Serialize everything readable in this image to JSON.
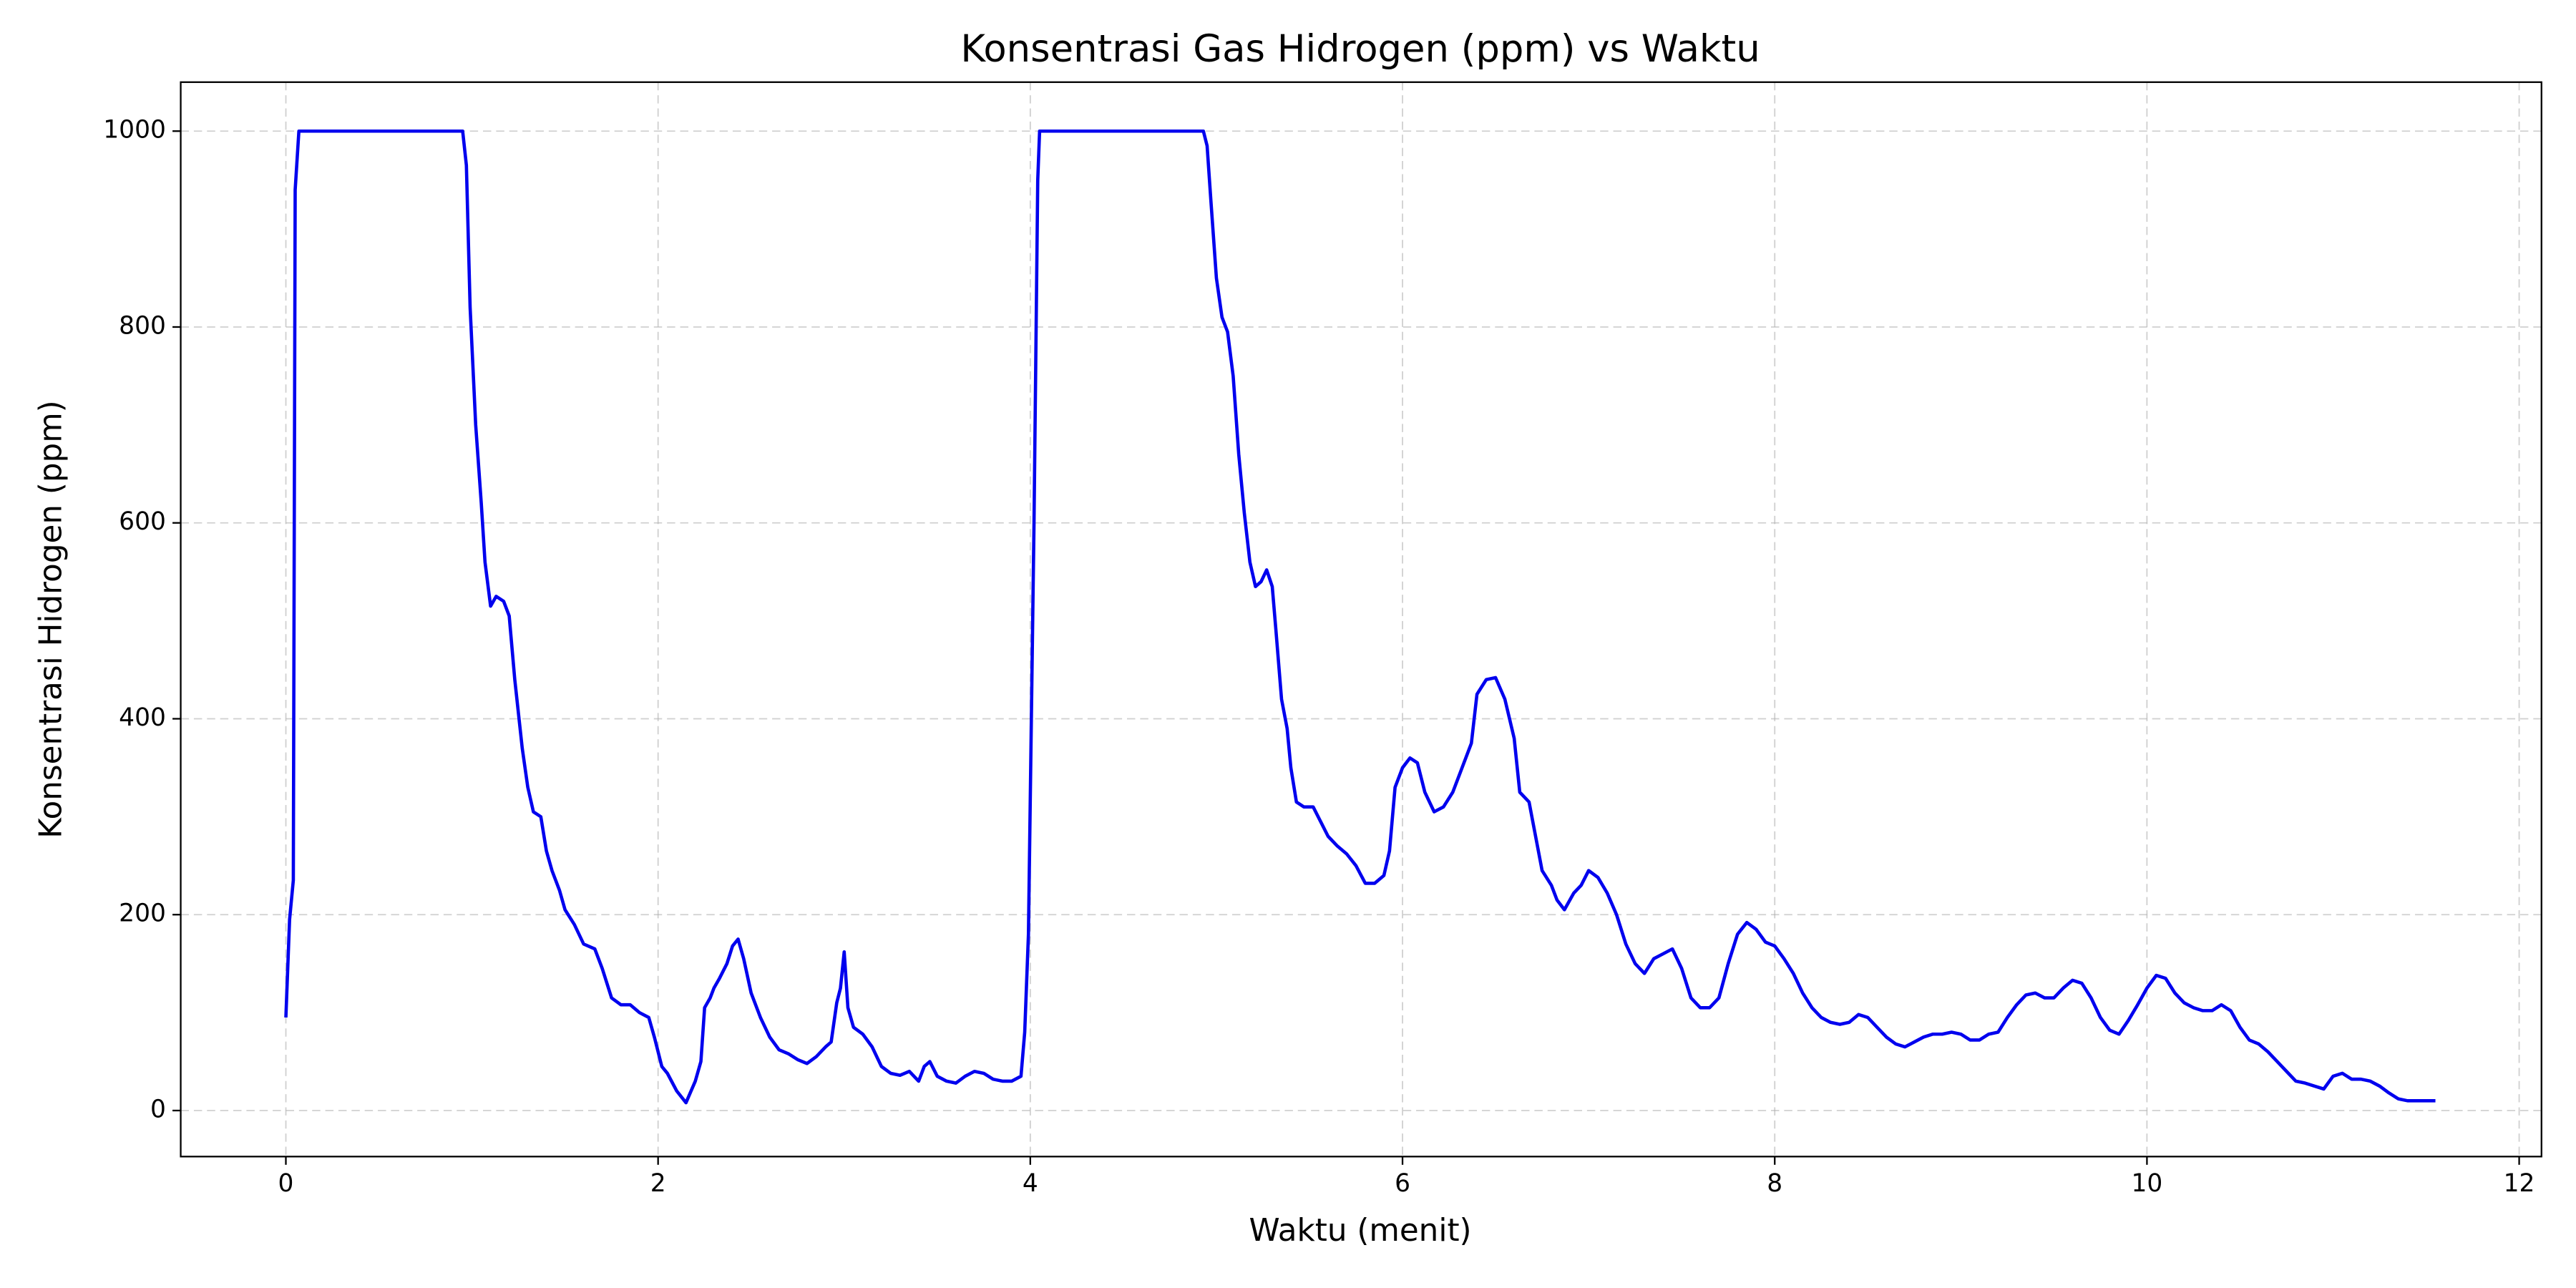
{
  "chart_data": {
    "type": "line",
    "title": "Konsentrasi Gas Hidrogen (ppm) vs Waktu",
    "x_label": "Waktu (menit)",
    "y_label": "Konsentrasi Hidrogen (ppm)",
    "xlim": [
      -0.565,
      12.12
    ],
    "ylim": [
      -47,
      1050
    ],
    "xticks": [
      0,
      2,
      4,
      6,
      8,
      10,
      12
    ],
    "yticks": [
      0,
      200,
      400,
      600,
      800,
      1000
    ],
    "grid": true,
    "series": [
      {
        "color": "#0000ee",
        "x": [
          0,
          0.02,
          0.04,
          0.05,
          0.07,
          0.95,
          0.97,
          0.99,
          1.02,
          1.05,
          1.07,
          1.1,
          1.13,
          1.17,
          1.2,
          1.23,
          1.27,
          1.3,
          1.33,
          1.37,
          1.4,
          1.43,
          1.47,
          1.5,
          1.55,
          1.6,
          1.66,
          1.7,
          1.75,
          1.8,
          1.85,
          1.9,
          1.95,
          1.98,
          2.02,
          2.05,
          2.1,
          2.15,
          2.2,
          2.23,
          2.25,
          2.28,
          2.3,
          2.33,
          2.37,
          2.4,
          2.43,
          2.46,
          2.5,
          2.55,
          2.6,
          2.65,
          2.7,
          2.75,
          2.8,
          2.85,
          2.9,
          2.93,
          2.96,
          2.98,
          3.0,
          3.02,
          3.05,
          3.1,
          3.15,
          3.2,
          3.25,
          3.3,
          3.35,
          3.4,
          3.43,
          3.46,
          3.5,
          3.55,
          3.6,
          3.65,
          3.7,
          3.75,
          3.8,
          3.85,
          3.9,
          3.95,
          3.97,
          3.99,
          4.02,
          4.04,
          4.05,
          4.93,
          4.95,
          4.97,
          5.0,
          5.03,
          5.06,
          5.09,
          5.12,
          5.15,
          5.18,
          5.21,
          5.24,
          5.27,
          5.3,
          5.32,
          5.35,
          5.38,
          5.4,
          5.43,
          5.47,
          5.52,
          5.56,
          5.6,
          5.65,
          5.7,
          5.75,
          5.8,
          5.85,
          5.9,
          5.93,
          5.96,
          6.0,
          6.04,
          6.08,
          6.12,
          6.17,
          6.22,
          6.27,
          6.32,
          6.37,
          6.4,
          6.45,
          6.5,
          6.55,
          6.6,
          6.63,
          6.68,
          6.72,
          6.75,
          6.8,
          6.83,
          6.87,
          6.92,
          6.96,
          7.0,
          7.05,
          7.1,
          7.15,
          7.2,
          7.25,
          7.3,
          7.35,
          7.4,
          7.45,
          7.5,
          7.55,
          7.6,
          7.65,
          7.7,
          7.75,
          7.8,
          7.85,
          7.9,
          7.95,
          8.0,
          8.05,
          8.1,
          8.15,
          8.2,
          8.25,
          8.3,
          8.35,
          8.4,
          8.45,
          8.5,
          8.55,
          8.6,
          8.65,
          8.7,
          8.75,
          8.8,
          8.85,
          8.9,
          8.95,
          9.0,
          9.05,
          9.1,
          9.15,
          9.2,
          9.25,
          9.3,
          9.35,
          9.4,
          9.45,
          9.5,
          9.55,
          9.6,
          9.65,
          9.7,
          9.75,
          9.8,
          9.85,
          9.9,
          9.95,
          10.0,
          10.05,
          10.1,
          10.15,
          10.2,
          10.25,
          10.3,
          10.35,
          10.4,
          10.45,
          10.5,
          10.55,
          10.6,
          10.65,
          10.7,
          10.75,
          10.8,
          10.85,
          10.9,
          10.95,
          11.0,
          11.05,
          11.1,
          11.15,
          11.2,
          11.25,
          11.3,
          11.35,
          11.4,
          11.55
        ],
        "values": [
          95,
          195,
          235,
          940,
          1000,
          1000,
          965,
          820,
          700,
          620,
          560,
          515,
          525,
          520,
          505,
          440,
          370,
          330,
          305,
          300,
          265,
          245,
          225,
          205,
          190,
          170,
          165,
          145,
          115,
          108,
          108,
          100,
          95,
          75,
          45,
          38,
          20,
          8,
          30,
          50,
          105,
          115,
          125,
          135,
          150,
          168,
          175,
          155,
          120,
          95,
          75,
          62,
          58,
          52,
          48,
          55,
          65,
          70,
          110,
          125,
          162,
          105,
          85,
          78,
          65,
          45,
          38,
          36,
          40,
          30,
          45,
          50,
          35,
          30,
          28,
          35,
          40,
          38,
          32,
          30,
          30,
          35,
          80,
          180,
          600,
          950,
          1000,
          1000,
          985,
          930,
          850,
          810,
          795,
          750,
          670,
          610,
          560,
          535,
          540,
          552,
          535,
          490,
          420,
          390,
          350,
          315,
          310,
          310,
          295,
          280,
          270,
          262,
          250,
          232,
          232,
          240,
          265,
          330,
          350,
          360,
          355,
          325,
          305,
          310,
          325,
          350,
          375,
          425,
          440,
          442,
          420,
          380,
          325,
          315,
          275,
          245,
          230,
          215,
          205,
          222,
          230,
          245,
          238,
          222,
          200,
          170,
          150,
          140,
          155,
          160,
          165,
          145,
          115,
          105,
          105,
          115,
          150,
          180,
          192,
          185,
          172,
          168,
          155,
          140,
          120,
          105,
          95,
          90,
          88,
          90,
          98,
          95,
          85,
          75,
          68,
          65,
          70,
          75,
          78,
          78,
          80,
          78,
          72,
          72,
          78,
          80,
          95,
          108,
          118,
          120,
          115,
          115,
          125,
          133,
          130,
          115,
          95,
          82,
          78,
          92,
          108,
          125,
          138,
          135,
          120,
          110,
          105,
          102,
          102,
          108,
          102,
          85,
          72,
          68,
          60,
          50,
          40,
          30,
          28,
          25,
          22,
          35,
          38,
          32,
          32,
          30,
          25,
          18,
          12,
          10,
          10
        ]
      }
    ]
  }
}
